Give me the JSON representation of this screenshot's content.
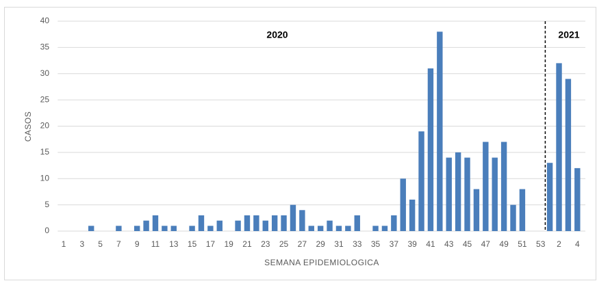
{
  "chart_data": {
    "type": "bar",
    "categories": [
      "1",
      null,
      "3",
      null,
      "5",
      null,
      "7",
      null,
      "9",
      null,
      "11",
      null,
      "13",
      null,
      "15",
      null,
      "17",
      null,
      "19",
      null,
      "21",
      null,
      "23",
      null,
      "25",
      null,
      "27",
      null,
      "29",
      null,
      "31",
      null,
      "33",
      null,
      "35",
      null,
      "37",
      null,
      "39",
      null,
      "41",
      null,
      "43",
      null,
      "45",
      null,
      "47",
      null,
      "49",
      null,
      "51",
      null,
      "53",
      null,
      "2",
      null,
      "4"
    ],
    "values": [
      0,
      0,
      0,
      1,
      0,
      0,
      1,
      0,
      1,
      2,
      3,
      1,
      1,
      0,
      1,
      3,
      1,
      2,
      0,
      2,
      3,
      3,
      2,
      3,
      3,
      5,
      4,
      1,
      1,
      2,
      1,
      1,
      3,
      0,
      1,
      1,
      3,
      10,
      6,
      19,
      31,
      38,
      14,
      15,
      14,
      8,
      17,
      14,
      17,
      5,
      8,
      0,
      0,
      13,
      32,
      29,
      12
    ],
    "color": "#4a7ebb",
    "ylim": [
      0,
      40
    ],
    "yticks": [
      0,
      5,
      10,
      15,
      20,
      25,
      30,
      35,
      40
    ],
    "grid": true,
    "x_label": "SEMANA  EPIDEMIOLOGICA",
    "y_label": "CASOS",
    "annotations": [
      "2020",
      "2021"
    ]
  }
}
